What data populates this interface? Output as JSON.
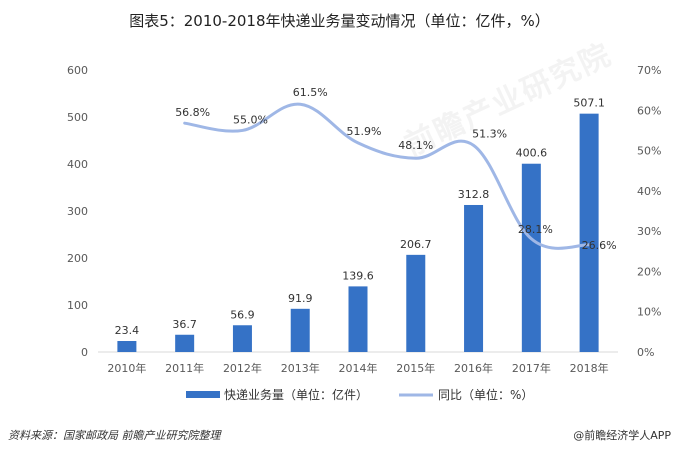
{
  "title": "图表5：2010-2018年快递业务量变动情况（单位：亿件，%）",
  "watermark": "前瞻产业研究院",
  "footer": {
    "source": "资料来源：国家邮政局 前瞻产业研究院整理",
    "brand": "@前瞻经济学人APP"
  },
  "colors": {
    "bar": "#3572C6",
    "line": "#9FB7E6",
    "axis": "#d9d9d9"
  },
  "chart_data": {
    "type": "bar",
    "categories": [
      "2010年",
      "2011年",
      "2012年",
      "2013年",
      "2014年",
      "2015年",
      "2016年",
      "2017年",
      "2018年"
    ],
    "series": [
      {
        "name": "快递业务量（单位：亿件）",
        "type": "bar",
        "axis": "left",
        "values": [
          23.4,
          36.7,
          56.9,
          91.9,
          139.6,
          206.7,
          312.8,
          400.6,
          507.1
        ],
        "labels": [
          "23.4",
          "36.7",
          "56.9",
          "91.9",
          "139.6",
          "206.7",
          "312.8",
          "400.6",
          "507.1"
        ]
      },
      {
        "name": "同比（单位：%）",
        "type": "line",
        "axis": "right",
        "values": [
          null,
          56.8,
          55.0,
          61.5,
          51.9,
          48.1,
          51.3,
          28.1,
          26.6
        ],
        "labels": [
          "",
          "56.8%",
          "55.0%",
          "61.5%",
          "51.9%",
          "48.1%",
          "51.3%",
          "28.1%",
          "26.6%"
        ]
      }
    ],
    "y_left": {
      "ticks": [
        "0",
        "100",
        "200",
        "300",
        "400",
        "500",
        "600"
      ],
      "ylim": [
        0,
        600
      ]
    },
    "y_right": {
      "ticks": [
        "0%",
        "10%",
        "20%",
        "30%",
        "40%",
        "50%",
        "60%",
        "70%"
      ],
      "ylim": [
        0,
        70
      ]
    },
    "legend_position": "bottom",
    "grid": false
  }
}
